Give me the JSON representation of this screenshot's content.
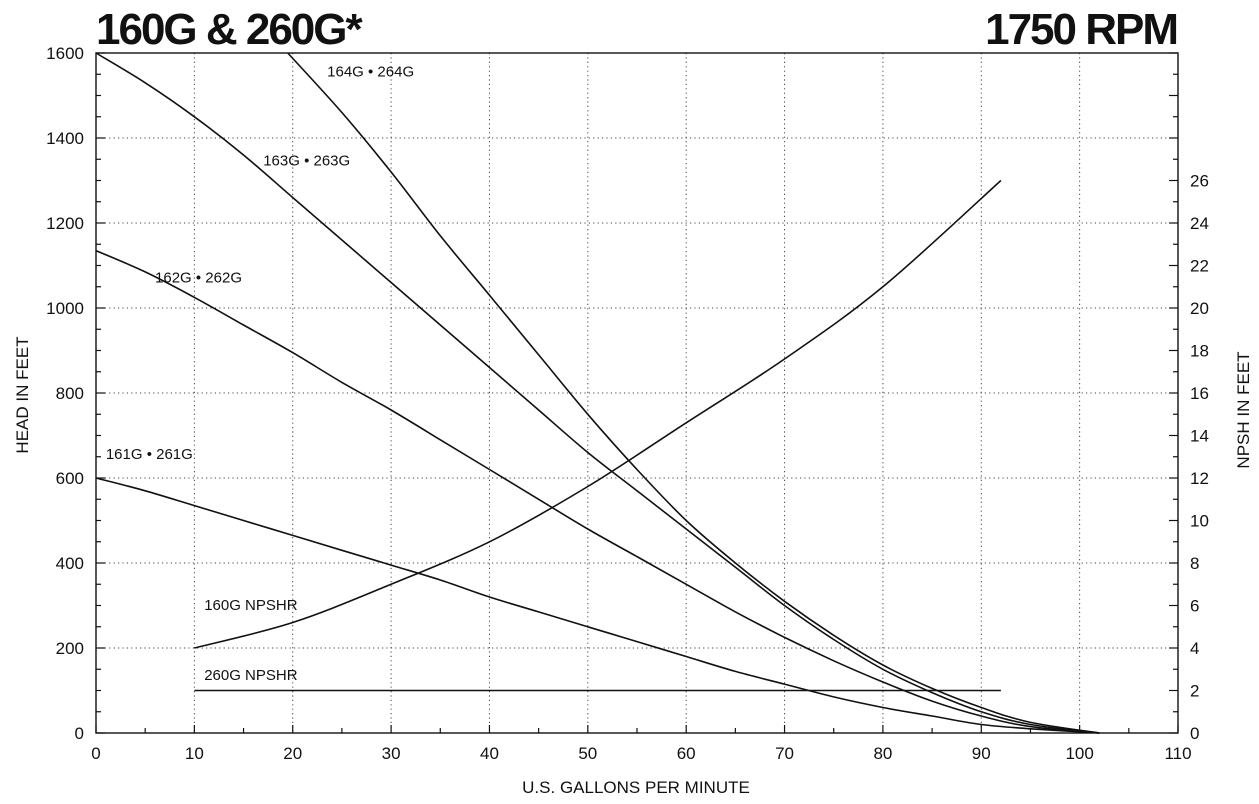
{
  "chart_data": {
    "type": "line",
    "title_left": "160G & 260G*",
    "title_right": "1750 RPM",
    "xlabel": "U.S. GALLONS PER MINUTE",
    "ylabel_left": "HEAD IN FEET",
    "ylabel_right": "NPSH IN FEET",
    "xlim": [
      0,
      110
    ],
    "ylim_left": [
      0,
      1600
    ],
    "ylim_right": [
      0,
      32
    ],
    "x_ticks": [
      0,
      10,
      20,
      30,
      40,
      50,
      60,
      70,
      80,
      90,
      100,
      110
    ],
    "y_left_ticks": [
      0,
      200,
      400,
      600,
      800,
      1000,
      1200,
      1400,
      1600
    ],
    "y_right_ticks": [
      0,
      2,
      4,
      6,
      8,
      10,
      12,
      14,
      16,
      18,
      20,
      22,
      24,
      26
    ],
    "grid": true,
    "head_series": [
      {
        "name": "164G • 264G",
        "points": [
          [
            19.5,
            1600
          ],
          [
            25,
            1460
          ],
          [
            30,
            1320
          ],
          [
            35,
            1170
          ],
          [
            40,
            1030
          ],
          [
            45,
            890
          ],
          [
            50,
            750
          ],
          [
            55,
            620
          ],
          [
            60,
            500
          ],
          [
            65,
            400
          ],
          [
            70,
            310
          ],
          [
            75,
            230
          ],
          [
            80,
            160
          ],
          [
            85,
            105
          ],
          [
            90,
            60
          ],
          [
            95,
            25
          ],
          [
            102,
            0
          ]
        ]
      },
      {
        "name": "163G • 263G",
        "points": [
          [
            0,
            1600
          ],
          [
            5,
            1530
          ],
          [
            10,
            1450
          ],
          [
            15,
            1360
          ],
          [
            20,
            1260
          ],
          [
            25,
            1160
          ],
          [
            30,
            1060
          ],
          [
            35,
            960
          ],
          [
            40,
            860
          ],
          [
            45,
            760
          ],
          [
            50,
            660
          ],
          [
            55,
            570
          ],
          [
            60,
            480
          ],
          [
            65,
            390
          ],
          [
            70,
            300
          ],
          [
            75,
            220
          ],
          [
            80,
            150
          ],
          [
            85,
            95
          ],
          [
            90,
            50
          ],
          [
            95,
            20
          ],
          [
            102,
            0
          ]
        ]
      },
      {
        "name": "162G • 262G",
        "points": [
          [
            0,
            1135
          ],
          [
            5,
            1085
          ],
          [
            10,
            1025
          ],
          [
            15,
            960
          ],
          [
            20,
            895
          ],
          [
            25,
            825
          ],
          [
            30,
            760
          ],
          [
            35,
            690
          ],
          [
            40,
            620
          ],
          [
            45,
            550
          ],
          [
            50,
            480
          ],
          [
            55,
            415
          ],
          [
            60,
            350
          ],
          [
            65,
            285
          ],
          [
            70,
            225
          ],
          [
            75,
            170
          ],
          [
            80,
            120
          ],
          [
            85,
            75
          ],
          [
            90,
            40
          ],
          [
            95,
            15
          ],
          [
            102,
            0
          ]
        ]
      },
      {
        "name": "161G • 261G",
        "points": [
          [
            0,
            600
          ],
          [
            5,
            570
          ],
          [
            10,
            535
          ],
          [
            15,
            500
          ],
          [
            20,
            465
          ],
          [
            25,
            430
          ],
          [
            30,
            395
          ],
          [
            35,
            360
          ],
          [
            40,
            320
          ],
          [
            45,
            285
          ],
          [
            50,
            250
          ],
          [
            55,
            215
          ],
          [
            60,
            180
          ],
          [
            65,
            145
          ],
          [
            70,
            115
          ],
          [
            75,
            85
          ],
          [
            80,
            60
          ],
          [
            85,
            40
          ],
          [
            90,
            20
          ],
          [
            95,
            10
          ],
          [
            102,
            0
          ]
        ]
      }
    ],
    "npsh_series": [
      {
        "name": "160G NPSHR",
        "points": [
          [
            10,
            4
          ],
          [
            20,
            5.2
          ],
          [
            30,
            7
          ],
          [
            40,
            9
          ],
          [
            50,
            11.6
          ],
          [
            60,
            14.6
          ],
          [
            70,
            17.6
          ],
          [
            80,
            21
          ],
          [
            92,
            26
          ]
        ]
      },
      {
        "name": "260G NPSHR",
        "points": [
          [
            10,
            2
          ],
          [
            92,
            2
          ]
        ]
      }
    ],
    "curve_labels": [
      {
        "text": "164G • 264G",
        "x": 23.5,
        "y": 1545
      },
      {
        "text": "163G • 263G",
        "x": 17,
        "y": 1335
      },
      {
        "text": "162G • 262G",
        "x": 6,
        "y": 1060
      },
      {
        "text": "161G • 261G",
        "x": 1,
        "y": 645
      },
      {
        "text": "160G  NPSHR",
        "x": 11,
        "y": 290
      },
      {
        "text": "260G  NPSHR",
        "x": 11,
        "y": 125
      }
    ]
  }
}
